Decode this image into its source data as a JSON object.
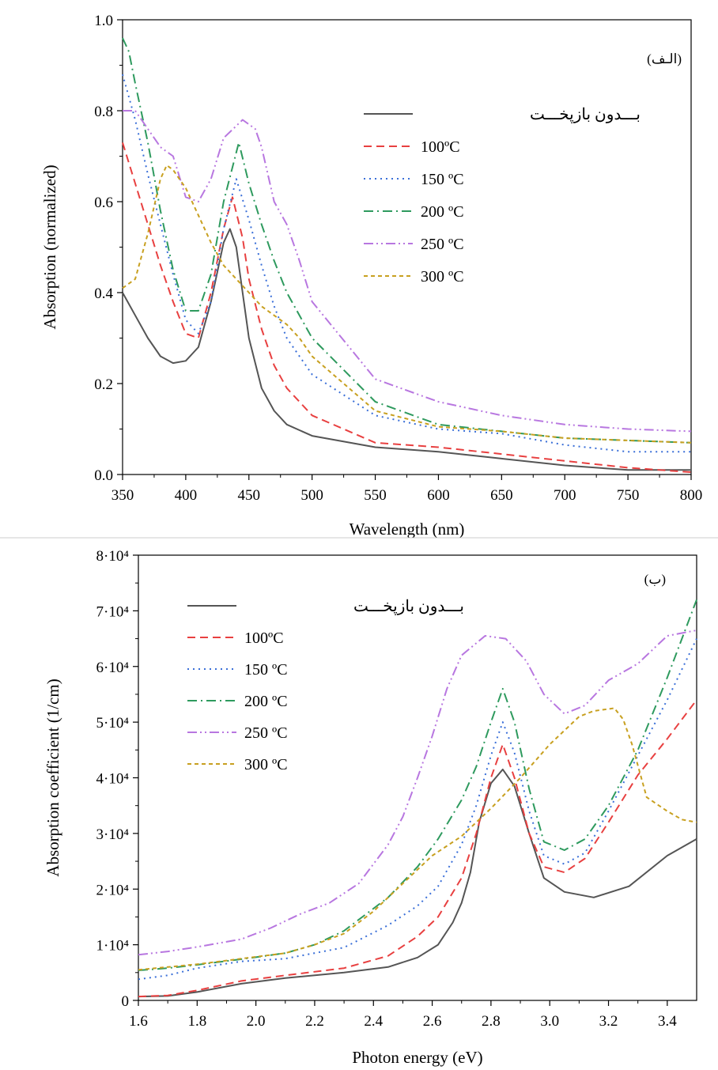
{
  "chart_data": [
    {
      "type": "line",
      "panel_label": "(الـف)",
      "xlabel": "Wavelength (nm)",
      "ylabel": "Absorption (normalized)",
      "xlim": [
        350,
        800
      ],
      "ylim": [
        0,
        1.0
      ],
      "x_ticks": [
        "350",
        "400",
        "450",
        "500",
        "550",
        "600",
        "650",
        "700",
        "750",
        "800"
      ],
      "y_ticks": [
        "0.0",
        "0.2",
        "0.4",
        "0.6",
        "0.8",
        "1.0"
      ],
      "legend_position": "top-right",
      "series": [
        {
          "name": "بـــدون بازپخـــت",
          "color": "#555555",
          "style": "solid",
          "x": [
            350,
            360,
            370,
            380,
            390,
            400,
            410,
            420,
            430,
            435,
            440,
            445,
            450,
            460,
            470,
            480,
            500,
            550,
            600,
            650,
            700,
            750,
            800
          ],
          "y": [
            0.4,
            0.35,
            0.3,
            0.26,
            0.245,
            0.25,
            0.28,
            0.38,
            0.51,
            0.54,
            0.5,
            0.4,
            0.3,
            0.19,
            0.14,
            0.11,
            0.085,
            0.06,
            0.05,
            0.035,
            0.02,
            0.01,
            0.01
          ]
        },
        {
          "name": "100ºC",
          "color": "#e84040",
          "style": "dashed",
          "x": [
            350,
            360,
            370,
            380,
            390,
            400,
            410,
            420,
            430,
            437,
            445,
            450,
            460,
            470,
            480,
            500,
            550,
            600,
            650,
            700,
            750,
            800
          ],
          "y": [
            0.73,
            0.64,
            0.55,
            0.46,
            0.38,
            0.31,
            0.3,
            0.4,
            0.54,
            0.61,
            0.52,
            0.43,
            0.32,
            0.24,
            0.19,
            0.13,
            0.07,
            0.06,
            0.045,
            0.03,
            0.015,
            0.005
          ]
        },
        {
          "name": "150 ºC",
          "color": "#3a6fd8",
          "style": "dotted",
          "x": [
            350,
            360,
            370,
            380,
            390,
            400,
            410,
            420,
            430,
            440,
            450,
            460,
            470,
            480,
            500,
            550,
            600,
            650,
            700,
            750,
            800
          ],
          "y": [
            0.88,
            0.78,
            0.66,
            0.55,
            0.44,
            0.34,
            0.31,
            0.38,
            0.54,
            0.65,
            0.56,
            0.46,
            0.37,
            0.3,
            0.22,
            0.13,
            0.1,
            0.09,
            0.065,
            0.05,
            0.05
          ]
        },
        {
          "name": "200 ºC",
          "color": "#2e9a5e",
          "style": "dashdot",
          "x": [
            350,
            355,
            360,
            370,
            380,
            390,
            400,
            410,
            420,
            430,
            442,
            450,
            460,
            470,
            480,
            500,
            550,
            600,
            650,
            700,
            750,
            800
          ],
          "y": [
            0.96,
            0.93,
            0.86,
            0.73,
            0.58,
            0.45,
            0.36,
            0.36,
            0.44,
            0.6,
            0.73,
            0.64,
            0.55,
            0.47,
            0.4,
            0.3,
            0.16,
            0.11,
            0.095,
            0.08,
            0.075,
            0.07
          ]
        },
        {
          "name": "250 ºC",
          "color": "#b877e0",
          "style": "dashdotdot",
          "x": [
            350,
            360,
            370,
            380,
            390,
            400,
            410,
            420,
            430,
            445,
            455,
            460,
            470,
            480,
            490,
            500,
            550,
            600,
            650,
            700,
            750,
            800
          ],
          "y": [
            0.8,
            0.8,
            0.76,
            0.72,
            0.7,
            0.61,
            0.6,
            0.65,
            0.74,
            0.78,
            0.76,
            0.72,
            0.6,
            0.55,
            0.47,
            0.38,
            0.21,
            0.16,
            0.13,
            0.11,
            0.1,
            0.095
          ]
        },
        {
          "name": "300 ºC",
          "color": "#c8a020",
          "style": "shortdash",
          "x": [
            350,
            360,
            370,
            380,
            385,
            390,
            400,
            410,
            420,
            430,
            440,
            450,
            460,
            470,
            480,
            490,
            500,
            550,
            600,
            650,
            700,
            750,
            800
          ],
          "y": [
            0.41,
            0.43,
            0.53,
            0.65,
            0.68,
            0.67,
            0.63,
            0.57,
            0.51,
            0.46,
            0.43,
            0.4,
            0.37,
            0.35,
            0.33,
            0.3,
            0.26,
            0.14,
            0.105,
            0.095,
            0.08,
            0.075,
            0.07
          ]
        }
      ]
    },
    {
      "type": "line",
      "panel_label": "(ب)",
      "xlabel": "Photon energy (eV)",
      "ylabel": "Absorption coefficient (1/cm)",
      "xlim": [
        1.6,
        3.5
      ],
      "ylim": [
        0,
        80000
      ],
      "x_ticks": [
        "1.6",
        "1.8",
        "2.0",
        "2.2",
        "2.4",
        "2.6",
        "2.8",
        "3.0",
        "3.2",
        "3.4"
      ],
      "y_ticks": [
        "0",
        "1·10⁴",
        "2·10⁴",
        "3·10⁴",
        "4·10⁴",
        "5·10⁴",
        "6·10⁴",
        "7·10⁴",
        "8·10⁴"
      ],
      "legend_position": "top-left",
      "series": [
        {
          "name": "بـــدون بازپخـــت",
          "color": "#555555",
          "style": "solid",
          "x": [
            1.6,
            1.7,
            1.8,
            1.95,
            2.1,
            2.3,
            2.45,
            2.55,
            2.62,
            2.67,
            2.7,
            2.73,
            2.76,
            2.8,
            2.84,
            2.88,
            2.93,
            2.98,
            3.05,
            3.15,
            3.27,
            3.4,
            3.5
          ],
          "y": [
            700,
            800,
            1500,
            3000,
            4000,
            5000,
            6000,
            7700,
            10000,
            14000,
            17500,
            23000,
            32000,
            39000,
            41500,
            38500,
            30000,
            22000,
            19500,
            18500,
            20500,
            26000,
            29000
          ]
        },
        {
          "name": "100ºC",
          "color": "#e84040",
          "style": "dashed",
          "x": [
            1.6,
            1.7,
            1.8,
            1.95,
            2.1,
            2.3,
            2.45,
            2.55,
            2.62,
            2.7,
            2.75,
            2.8,
            2.84,
            2.88,
            2.93,
            2.98,
            3.05,
            3.12,
            3.2,
            3.3,
            3.4,
            3.5
          ],
          "y": [
            700,
            900,
            1800,
            3500,
            4500,
            5800,
            8000,
            11500,
            15000,
            22000,
            30000,
            40000,
            46000,
            40000,
            30000,
            24000,
            23000,
            25500,
            32000,
            40500,
            47000,
            54000
          ]
        },
        {
          "name": "150 ºC",
          "color": "#3a6fd8",
          "style": "dotted",
          "x": [
            1.6,
            1.7,
            1.8,
            1.95,
            2.1,
            2.3,
            2.45,
            2.55,
            2.62,
            2.7,
            2.75,
            2.8,
            2.84,
            2.88,
            2.93,
            2.98,
            3.05,
            3.12,
            3.2,
            3.3,
            3.4,
            3.5
          ],
          "y": [
            3800,
            4500,
            5800,
            7000,
            7500,
            9500,
            13500,
            17000,
            20500,
            28000,
            35000,
            44000,
            50000,
            44500,
            34000,
            26000,
            24500,
            26500,
            34000,
            44000,
            54000,
            65000
          ]
        },
        {
          "name": "200 ºC",
          "color": "#2e9a5e",
          "style": "dashdot",
          "x": [
            1.6,
            1.7,
            1.8,
            1.95,
            2.1,
            2.2,
            2.3,
            2.45,
            2.55,
            2.62,
            2.7,
            2.75,
            2.8,
            2.84,
            2.88,
            2.93,
            2.98,
            3.05,
            3.12,
            3.2,
            3.3,
            3.4,
            3.5
          ],
          "y": [
            5400,
            5800,
            6400,
            7400,
            8500,
            10000,
            12500,
            18500,
            24000,
            29000,
            36000,
            42000,
            50000,
            56000,
            50000,
            38000,
            28500,
            27000,
            29000,
            35000,
            45000,
            58000,
            72000
          ]
        },
        {
          "name": "250 ºC",
          "color": "#b877e0",
          "style": "dashdotdot",
          "x": [
            1.6,
            1.7,
            1.8,
            1.95,
            2.05,
            2.15,
            2.25,
            2.35,
            2.45,
            2.5,
            2.55,
            2.6,
            2.65,
            2.7,
            2.78,
            2.85,
            2.92,
            2.98,
            3.05,
            3.12,
            3.2,
            3.3,
            3.4,
            3.5
          ],
          "y": [
            8200,
            8800,
            9600,
            11000,
            13000,
            15500,
            17500,
            21000,
            28000,
            33000,
            40000,
            47500,
            56000,
            62000,
            65500,
            65000,
            61000,
            55000,
            51500,
            53000,
            57500,
            60500,
            65500,
            66500
          ]
        },
        {
          "name": "300 ºC",
          "color": "#c8a020",
          "style": "shortdash",
          "x": [
            1.6,
            1.7,
            1.8,
            1.95,
            2.1,
            2.2,
            2.3,
            2.4,
            2.5,
            2.6,
            2.7,
            2.8,
            2.9,
            3.0,
            3.1,
            3.15,
            3.22,
            3.25,
            3.28,
            3.33,
            3.4,
            3.45,
            3.5
          ],
          "y": [
            5500,
            6000,
            6500,
            7500,
            8500,
            10000,
            12000,
            16000,
            21000,
            26000,
            29500,
            34500,
            40000,
            46000,
            51000,
            52000,
            52500,
            50500,
            46000,
            36500,
            34000,
            32500,
            32000
          ]
        }
      ]
    }
  ]
}
